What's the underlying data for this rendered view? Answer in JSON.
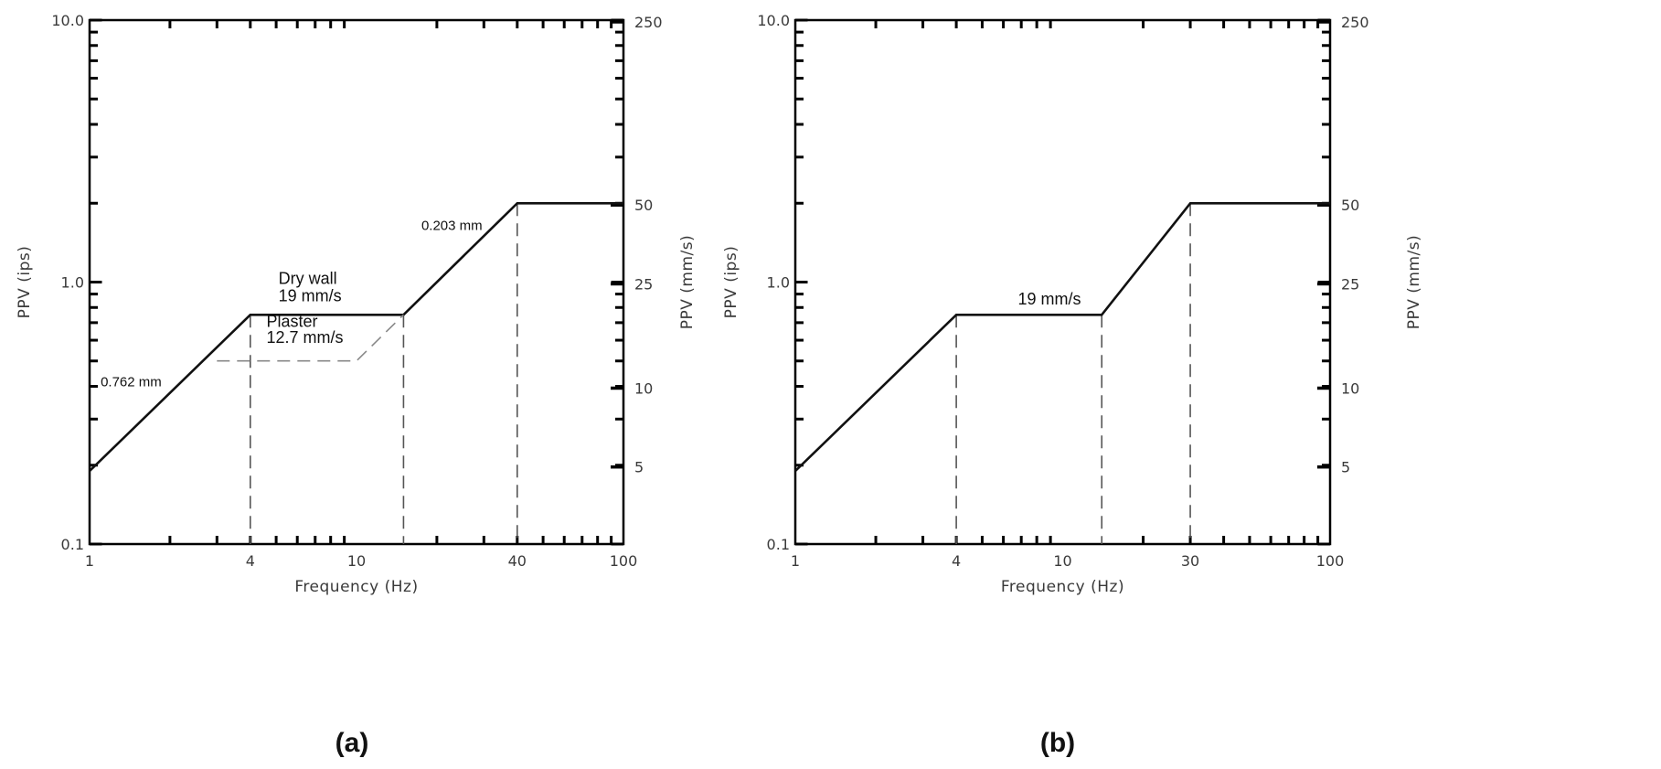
{
  "chart_data": [
    {
      "type": "line",
      "panel_label": "(a)",
      "xlabel": "Frequency (Hz)",
      "ylabel_left": "PPV (ips)",
      "ylabel_right": "PPV (mm/s)",
      "x_scale": "log",
      "y_scale": "log",
      "xlim": [
        1,
        100
      ],
      "ylim": [
        0.1,
        10
      ],
      "x_ticks": [
        {
          "value": 1,
          "label": "1"
        },
        {
          "value": 4,
          "label": "4"
        },
        {
          "value": 10,
          "label": "10"
        },
        {
          "value": 40,
          "label": "40"
        },
        {
          "value": 100,
          "label": "100"
        }
      ],
      "y_ticks_left": [
        {
          "value": 0.1,
          "label": "0.1"
        },
        {
          "value": 1,
          "label": "1.0"
        },
        {
          "value": 10,
          "label": "10.0"
        }
      ],
      "y_ticks_right": [
        {
          "value": 0.1969,
          "label": "5"
        },
        {
          "value": 0.3937,
          "label": "10"
        },
        {
          "value": 0.9843,
          "label": "25"
        },
        {
          "value": 1.9685,
          "label": "50"
        },
        {
          "value": 9.8425,
          "label": "250"
        }
      ],
      "series": [
        {
          "style": "solid",
          "x": [
            1,
            4,
            15,
            40,
            100
          ],
          "y": [
            0.19,
            0.75,
            0.75,
            2.0,
            2.0
          ]
        },
        {
          "style": "dashed-grey",
          "x": [
            3,
            10,
            15
          ],
          "y": [
            0.5,
            0.5,
            0.75
          ]
        }
      ],
      "guides": [
        {
          "x": 4,
          "y_to": 0.75
        },
        {
          "x": 15,
          "y_to": 0.75
        },
        {
          "x": 40,
          "y_to": 2.0
        }
      ],
      "annotations": [
        {
          "text": "0.762 mm",
          "x": 1.1,
          "y": 0.4
        },
        {
          "text": "Dry wall",
          "x": 5.1,
          "y": 0.985
        },
        {
          "text": "19 mm/s",
          "x": 5.1,
          "y": 0.845
        },
        {
          "text": "Plaster",
          "x": 4.6,
          "y": 0.675
        },
        {
          "text": "12.7 mm/s",
          "x": 4.6,
          "y": 0.585
        },
        {
          "text": "0.203 mm",
          "x": 17.5,
          "y": 1.58
        }
      ]
    },
    {
      "type": "line",
      "panel_label": "(b)",
      "xlabel": "Frequency (Hz)",
      "ylabel_left": "PPV (ips)",
      "ylabel_right": "PPV (mm/s)",
      "x_scale": "log",
      "y_scale": "log",
      "xlim": [
        1,
        100
      ],
      "ylim": [
        0.1,
        10
      ],
      "x_ticks": [
        {
          "value": 1,
          "label": "1"
        },
        {
          "value": 4,
          "label": "4"
        },
        {
          "value": 10,
          "label": "10"
        },
        {
          "value": 30,
          "label": "30"
        },
        {
          "value": 100,
          "label": "100"
        }
      ],
      "y_ticks_left": [
        {
          "value": 0.1,
          "label": "0.1"
        },
        {
          "value": 1,
          "label": "1.0"
        },
        {
          "value": 10,
          "label": "10.0"
        }
      ],
      "y_ticks_right": [
        {
          "value": 0.1969,
          "label": "5"
        },
        {
          "value": 0.3937,
          "label": "10"
        },
        {
          "value": 0.9843,
          "label": "25"
        },
        {
          "value": 1.9685,
          "label": "50"
        },
        {
          "value": 9.8425,
          "label": "250"
        }
      ],
      "series": [
        {
          "style": "solid",
          "x": [
            1,
            4,
            14,
            30,
            100
          ],
          "y": [
            0.19,
            0.75,
            0.75,
            2.0,
            2.0
          ]
        }
      ],
      "guides": [
        {
          "x": 4,
          "y_to": 0.75
        },
        {
          "x": 14,
          "y_to": 0.75
        },
        {
          "x": 30,
          "y_to": 2.0
        }
      ],
      "annotations": [
        {
          "text": "19 mm/s",
          "x": 6.8,
          "y": 0.82
        }
      ]
    }
  ]
}
